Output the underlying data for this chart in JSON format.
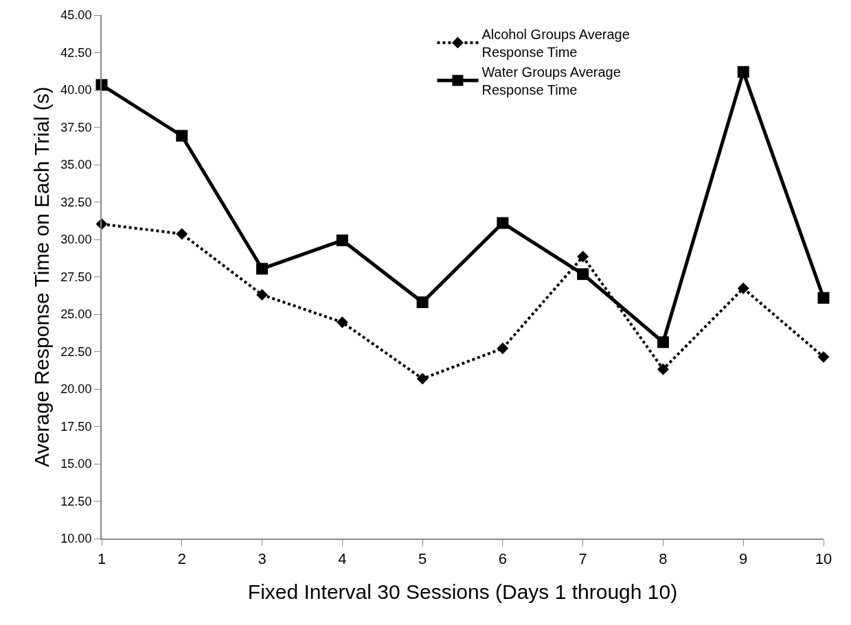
{
  "chart_data": {
    "type": "line",
    "xlabel": "Fixed Interval 30 Sessions (Days 1 through 10)",
    "ylabel": "Average Response Time on Each Trial (s)",
    "categories": [
      "1",
      "2",
      "3",
      "4",
      "5",
      "6",
      "7",
      "8",
      "9",
      "10"
    ],
    "series": [
      {
        "name": "Alcohol Groups Average Response Time",
        "color": "#000000",
        "marker": "diamond",
        "line_style": "dotted",
        "values": [
          31.03,
          30.37,
          26.3,
          24.46,
          20.69,
          22.72,
          28.85,
          21.32,
          26.73,
          22.14
        ]
      },
      {
        "name": "Water Groups Average Response Time",
        "color": "#000000",
        "marker": "square",
        "line_style": "solid",
        "values": [
          40.33,
          36.93,
          28.04,
          29.94,
          25.8,
          31.1,
          27.68,
          23.13,
          41.2,
          26.09
        ]
      }
    ],
    "ylim": [
      10,
      45
    ],
    "yticks": [
      {
        "value": 10,
        "label": "10.00"
      },
      {
        "value": 12.5,
        "label": "12.50"
      },
      {
        "value": 15,
        "label": "15.00"
      },
      {
        "value": 17.5,
        "label": "17.50"
      },
      {
        "value": 20,
        "label": "20.00"
      },
      {
        "value": 22.5,
        "label": "22.50"
      },
      {
        "value": 25,
        "label": "25.00"
      },
      {
        "value": 27.5,
        "label": "27.50"
      },
      {
        "value": 30,
        "label": "30.00"
      },
      {
        "value": 32.5,
        "label": "32.50"
      },
      {
        "value": 35,
        "label": "35.00"
      },
      {
        "value": 37.5,
        "label": "37.50"
      },
      {
        "value": 40,
        "label": "40.00"
      },
      {
        "value": 42.5,
        "label": "42.50"
      },
      {
        "value": 45,
        "label": "45.00"
      }
    ],
    "legend": "top right"
  }
}
